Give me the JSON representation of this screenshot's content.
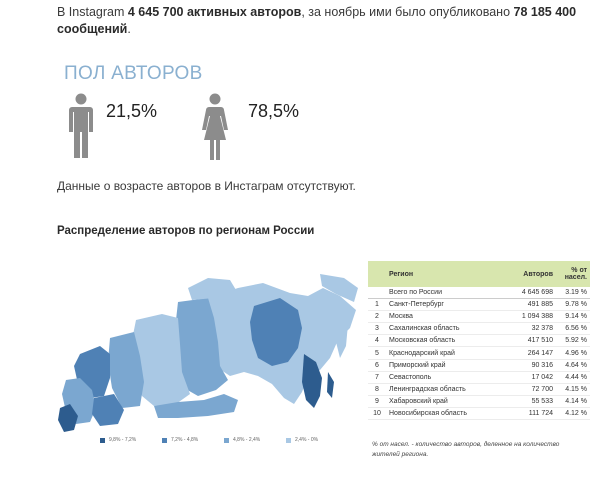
{
  "intro": {
    "text_1": "В Instagram ",
    "authors": "4 645 700 активных авторов",
    "text_2": ", за ноябрь ими было опубликовано ",
    "posts": "78 185 400 сообщений",
    "text_3": "."
  },
  "gender": {
    "title": "ПОЛ АВТОРОВ",
    "male_pct": "21,5%",
    "female_pct": "78,5%",
    "male_value": 21.5,
    "female_value": 78.5,
    "icon_color": "#8c8c8c"
  },
  "age_note": "Данные о возрасте авторов в Инстаграм отсутствуют.",
  "regions": {
    "title": "Распределение авторов по регионам России",
    "legend": [
      {
        "label": "9,8% - 7,2%",
        "color": "#2d5c8e"
      },
      {
        "label": "7,2% - 4,8%",
        "color": "#4f81b5"
      },
      {
        "label": "4,8% - 2,4%",
        "color": "#7ba7d0"
      },
      {
        "label": "2,4% - 0%",
        "color": "#a9c8e4"
      }
    ],
    "table": {
      "headers": {
        "region": "Регион",
        "authors": "Авторов",
        "pct": "% от насел."
      },
      "total": {
        "name": "Всего по России",
        "authors": "4 645 698",
        "pct": "3.19 %"
      },
      "rows": [
        {
          "n": "1",
          "name": "Санкт-Петербург",
          "authors": "491 885",
          "pct": "9.78 %"
        },
        {
          "n": "2",
          "name": "Москва",
          "authors": "1 094 388",
          "pct": "9.14 %"
        },
        {
          "n": "3",
          "name": "Сахалинская область",
          "authors": "32 378",
          "pct": "6.56 %"
        },
        {
          "n": "4",
          "name": "Московская область",
          "authors": "417 510",
          "pct": "5.92 %"
        },
        {
          "n": "5",
          "name": "Краснодарский край",
          "authors": "264 147",
          "pct": "4.96 %"
        },
        {
          "n": "6",
          "name": "Приморский край",
          "authors": "90 316",
          "pct": "4.64 %"
        },
        {
          "n": "7",
          "name": "Севастополь",
          "authors": "17 042",
          "pct": "4.44 %"
        },
        {
          "n": "8",
          "name": "Ленинградская область",
          "authors": "72 700",
          "pct": "4.15 %"
        },
        {
          "n": "9",
          "name": "Хабаровский край",
          "authors": "55 533",
          "pct": "4.14 %"
        },
        {
          "n": "10",
          "name": "Новосибирская область",
          "authors": "111 724",
          "pct": "4.12 %"
        }
      ]
    },
    "footnote": "% от насел. - количество авторов, деленное на количество жителей региона."
  }
}
